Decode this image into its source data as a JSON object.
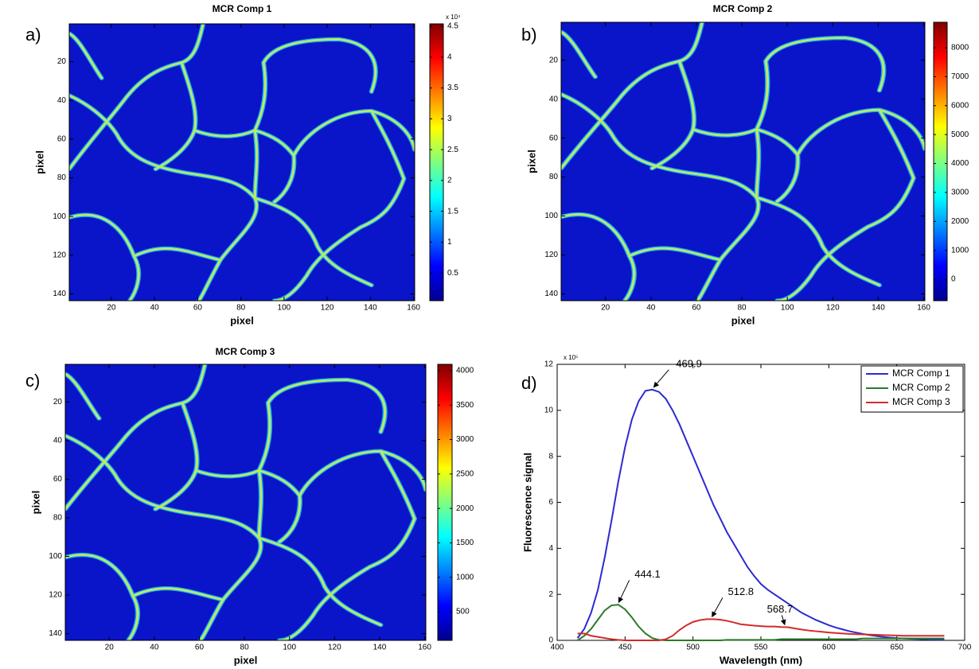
{
  "chart_data": [
    {
      "type": "heatmap",
      "panel_label": "a)",
      "title": "MCR Comp 1",
      "xlabel": "pixel",
      "ylabel": "pixel",
      "xlim": [
        0.5,
        160.5
      ],
      "ylim": [
        0.5,
        143.5
      ],
      "y_reversed": true,
      "xticks": [
        20,
        40,
        60,
        80,
        100,
        120,
        140,
        160
      ],
      "yticks": [
        20,
        40,
        60,
        80,
        100,
        120,
        140
      ],
      "colormap": "jet",
      "clim": [
        0.05,
        4.54
      ],
      "cticks": [
        0.5,
        1,
        1.5,
        2,
        2.5,
        3,
        3.5,
        4,
        4.5
      ],
      "cticks_exponent": "x 10⁴"
    },
    {
      "type": "heatmap",
      "panel_label": "b)",
      "title": "MCR Comp 2",
      "xlabel": "pixel",
      "ylabel": "pixel",
      "xlim": [
        0.5,
        160.5
      ],
      "ylim": [
        0.5,
        143.5
      ],
      "y_reversed": true,
      "xticks": [
        20,
        40,
        60,
        80,
        100,
        120,
        140,
        160
      ],
      "yticks": [
        20,
        40,
        60,
        80,
        100,
        120,
        140
      ],
      "colormap": "jet",
      "clim": [
        -740,
        8880
      ],
      "cticks": [
        0,
        1000,
        2000,
        3000,
        4000,
        5000,
        6000,
        7000,
        8000
      ]
    },
    {
      "type": "heatmap",
      "panel_label": "c)",
      "title": "MCR Comp 3",
      "xlabel": "pixel",
      "ylabel": "pixel",
      "xlim": [
        0.5,
        160.5
      ],
      "ylim": [
        0.5,
        143.5
      ],
      "y_reversed": true,
      "xticks": [
        20,
        40,
        60,
        80,
        100,
        120,
        140,
        160
      ],
      "yticks": [
        20,
        40,
        60,
        80,
        100,
        120,
        140
      ],
      "colormap": "jet",
      "clim": [
        84,
        4092
      ],
      "cticks": [
        500,
        1000,
        1500,
        2000,
        2500,
        3000,
        3500,
        4000
      ]
    },
    {
      "type": "line",
      "panel_label": "d)",
      "xlabel": "Wavelength (nm)",
      "ylabel": "Fluorescence signal",
      "xlim": [
        400,
        700
      ],
      "ylim": [
        0,
        12
      ],
      "xticks": [
        400,
        450,
        500,
        550,
        600,
        650,
        700
      ],
      "yticks": [
        0,
        2,
        4,
        6,
        8,
        10,
        12
      ],
      "yticks_exponent": "x 10⁵",
      "legend": "upper right",
      "x": [
        415,
        420,
        425,
        430,
        435,
        440,
        445,
        450,
        455,
        460,
        465,
        470,
        475,
        480,
        485,
        490,
        495,
        500,
        505,
        510,
        515,
        520,
        525,
        530,
        535,
        540,
        545,
        550,
        555,
        560,
        565,
        570,
        575,
        580,
        585,
        590,
        595,
        600,
        605,
        610,
        615,
        620,
        625,
        630,
        635,
        640,
        645,
        650,
        655,
        660,
        665,
        670,
        675,
        680,
        685
      ],
      "series": [
        {
          "name": "MCR Comp 1",
          "color": "#2b2bd0",
          "peaks": [
            469.9
          ],
          "values": [
            0.1,
            0.5,
            1.2,
            2.2,
            3.6,
            5.2,
            6.9,
            8.4,
            9.6,
            10.4,
            10.85,
            10.9,
            10.8,
            10.5,
            10.0,
            9.4,
            8.7,
            8.0,
            7.3,
            6.6,
            5.9,
            5.3,
            4.7,
            4.2,
            3.7,
            3.2,
            2.8,
            2.45,
            2.2,
            2.0,
            1.8,
            1.6,
            1.4,
            1.2,
            1.05,
            0.9,
            0.78,
            0.66,
            0.56,
            0.48,
            0.4,
            0.34,
            0.28,
            0.23,
            0.19,
            0.15,
            0.12,
            0.1,
            0.08,
            0.07,
            0.06,
            0.05,
            0.04,
            0.04,
            0.03
          ]
        },
        {
          "name": "MCR Comp 2",
          "color": "#2a7a2a",
          "peaks": [
            444.1
          ],
          "values": [
            0,
            0.2,
            0.5,
            0.9,
            1.3,
            1.52,
            1.55,
            1.35,
            1.0,
            0.6,
            0.3,
            0.1,
            0.02,
            0,
            0,
            0,
            0,
            0,
            0,
            0,
            0,
            0,
            0.02,
            0.02,
            0.02,
            0.02,
            0.02,
            0.02,
            0.02,
            0.02,
            0.05,
            0.05,
            0.05,
            0.05,
            0.05,
            0.05,
            0.05,
            0.05,
            0.05,
            0.05,
            0.05,
            0.05,
            0.08,
            0.08,
            0.08,
            0.08,
            0.08,
            0.08,
            0.08,
            0.08,
            0.08,
            0.08,
            0.08,
            0.08,
            0.08
          ]
        },
        {
          "name": "MCR Comp 3",
          "color": "#d42a2a",
          "peaks": [
            512.8,
            568.7
          ],
          "values": [
            0.3,
            0.3,
            0.2,
            0.15,
            0.1,
            0.05,
            0.02,
            0,
            0,
            0,
            0,
            0,
            0,
            0.05,
            0.2,
            0.45,
            0.65,
            0.8,
            0.88,
            0.92,
            0.92,
            0.9,
            0.85,
            0.78,
            0.7,
            0.67,
            0.64,
            0.62,
            0.6,
            0.6,
            0.58,
            0.57,
            0.52,
            0.47,
            0.43,
            0.4,
            0.37,
            0.34,
            0.32,
            0.3,
            0.28,
            0.27,
            0.26,
            0.25,
            0.24,
            0.23,
            0.22,
            0.21,
            0.2,
            0.2,
            0.2,
            0.2,
            0.2,
            0.2,
            0.2
          ]
        }
      ]
    }
  ]
}
